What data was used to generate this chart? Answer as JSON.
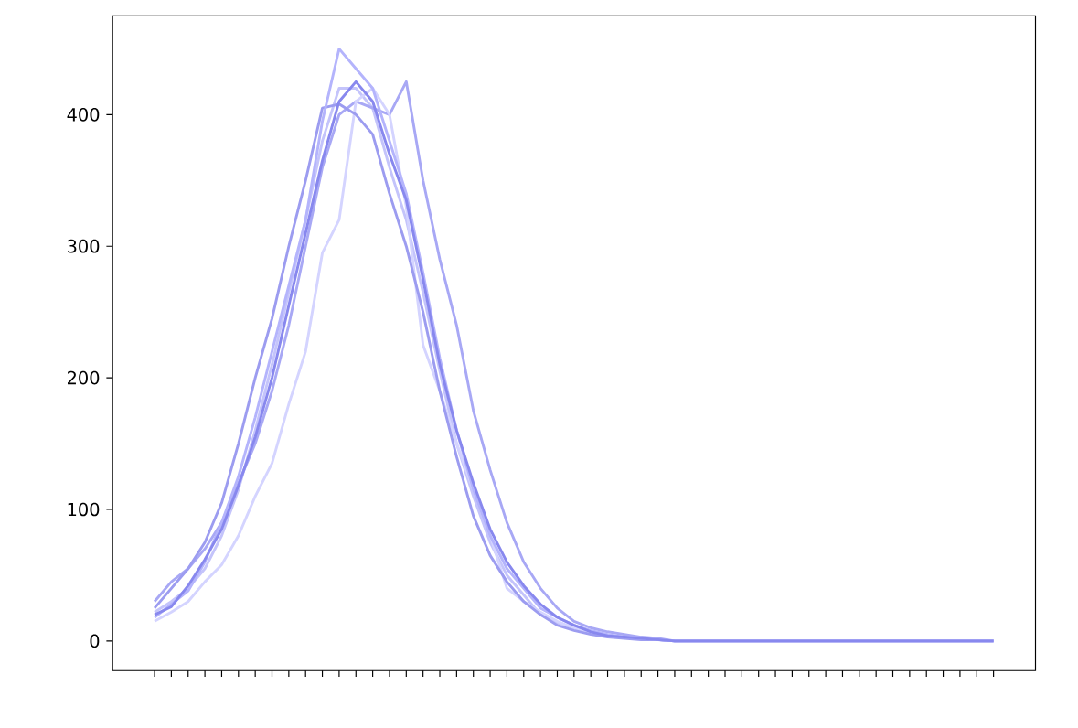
{
  "chart_data": {
    "type": "line",
    "categories": [
      null,
      null,
      null,
      null,
      null,
      null,
      null,
      null,
      null,
      null,
      null,
      null,
      null,
      null,
      null,
      null,
      null,
      null,
      null,
      null,
      null,
      null,
      null,
      null,
      null,
      null,
      null,
      null,
      null,
      null,
      null,
      null,
      null,
      null,
      null,
      null,
      null,
      null,
      null,
      null,
      null,
      null,
      null,
      null,
      null,
      null,
      null,
      null,
      null,
      null,
      null
    ],
    "series": [
      {
        "color": "#c4c4fb",
        "values": [
          22,
          30,
          40,
          55,
          80,
          115,
          160,
          210,
          265,
          320,
          380,
          420,
          420,
          405,
          360,
          320,
          265,
          205,
          150,
          110,
          75,
          50,
          35,
          20,
          14,
          10,
          6,
          4,
          3,
          2,
          1,
          0,
          0,
          0,
          0,
          0,
          0,
          0,
          0,
          0,
          0,
          0,
          0,
          0,
          0,
          0,
          0,
          0,
          0,
          0,
          0
        ]
      },
      {
        "color": "#a8a8f5",
        "values": [
          30,
          45,
          55,
          70,
          90,
          120,
          150,
          190,
          240,
          300,
          360,
          400,
          410,
          405,
          400,
          425,
          350,
          290,
          240,
          175,
          130,
          90,
          60,
          40,
          25,
          15,
          10,
          7,
          5,
          3,
          2,
          0,
          0,
          0,
          0,
          0,
          0,
          0,
          0,
          0,
          0,
          0,
          0,
          0,
          0,
          0,
          0,
          0,
          0,
          0,
          0
        ]
      },
      {
        "color": "#d4d4ff",
        "values": [
          15,
          22,
          30,
          45,
          58,
          80,
          110,
          135,
          180,
          220,
          295,
          320,
          410,
          420,
          400,
          330,
          225,
          190,
          150,
          115,
          80,
          40,
          30,
          22,
          15,
          10,
          6,
          4,
          3,
          2,
          1,
          0,
          0,
          0,
          0,
          0,
          0,
          0,
          0,
          0,
          0,
          0,
          0,
          0,
          0,
          0,
          0,
          0,
          0,
          0,
          0
        ]
      },
      {
        "color": "#9c9cf0",
        "values": [
          25,
          40,
          55,
          75,
          105,
          150,
          200,
          245,
          300,
          350,
          405,
          408,
          400,
          385,
          340,
          300,
          250,
          190,
          140,
          95,
          65,
          45,
          30,
          20,
          12,
          8,
          5,
          3,
          2,
          1,
          1,
          0,
          0,
          0,
          0,
          0,
          0,
          0,
          0,
          0,
          0,
          0,
          0,
          0,
          0,
          0,
          0,
          0,
          0,
          0,
          0
        ]
      },
      {
        "color": "#b4b4fc",
        "values": [
          18,
          28,
          38,
          60,
          90,
          125,
          170,
          220,
          270,
          320,
          395,
          450,
          435,
          420,
          380,
          340,
          280,
          215,
          160,
          115,
          80,
          55,
          40,
          25,
          18,
          12,
          8,
          5,
          3,
          2,
          1,
          0,
          0,
          0,
          0,
          0,
          0,
          0,
          0,
          0,
          0,
          0,
          0,
          0,
          0,
          0,
          0,
          0,
          0,
          0,
          0
        ]
      },
      {
        "color": "#8888ee",
        "values": [
          20,
          26,
          42,
          62,
          85,
          118,
          155,
          200,
          255,
          310,
          365,
          410,
          425,
          410,
          370,
          335,
          275,
          210,
          160,
          120,
          85,
          60,
          42,
          28,
          18,
          12,
          7,
          4,
          3,
          2,
          1,
          0,
          0,
          0,
          0,
          0,
          0,
          0,
          0,
          0,
          0,
          0,
          0,
          0,
          0,
          0,
          0,
          0,
          0,
          0,
          0
        ]
      }
    ],
    "ylim": [
      -22.5,
      475
    ],
    "yticks": [
      0,
      100,
      200,
      300,
      400
    ]
  }
}
